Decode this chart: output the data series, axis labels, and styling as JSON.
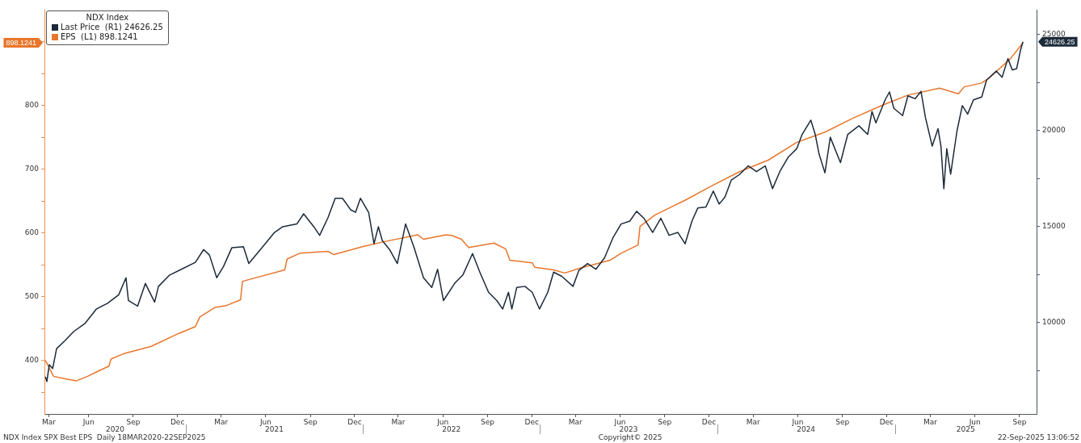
{
  "chart_data": {
    "type": "line",
    "legend_title": "NDX Index",
    "legend": "top left",
    "marker": "none",
    "grid": false,
    "xlim": [
      "2020-03-16",
      "2025-10-20"
    ],
    "xticks": [
      {
        "value": "2020-03-25",
        "label": "Mar"
      },
      {
        "value": "2020-06-15",
        "label": "Jun"
      },
      {
        "value": "2020-09-15",
        "label": "Sep"
      },
      {
        "value": "2020-12-15",
        "label": "Dec"
      },
      {
        "value": "2021-03-15",
        "label": "Mar"
      },
      {
        "value": "2021-06-15",
        "label": "Jun"
      },
      {
        "value": "2021-09-15",
        "label": "Sep"
      },
      {
        "value": "2021-12-15",
        "label": "Dec"
      },
      {
        "value": "2022-03-15",
        "label": "Mar"
      },
      {
        "value": "2022-06-15",
        "label": "Jun"
      },
      {
        "value": "2022-09-15",
        "label": "Sep"
      },
      {
        "value": "2022-12-15",
        "label": "Dec"
      },
      {
        "value": "2023-03-15",
        "label": "Mar"
      },
      {
        "value": "2023-06-15",
        "label": "Jun"
      },
      {
        "value": "2023-09-15",
        "label": "Sep"
      },
      {
        "value": "2023-12-15",
        "label": "Dec"
      },
      {
        "value": "2024-03-15",
        "label": "Mar"
      },
      {
        "value": "2024-06-15",
        "label": "Jun"
      },
      {
        "value": "2024-09-15",
        "label": "Sep"
      },
      {
        "value": "2024-12-15",
        "label": "Dec"
      },
      {
        "value": "2025-03-15",
        "label": "Mar"
      },
      {
        "value": "2025-06-15",
        "label": "Jun"
      },
      {
        "value": "2025-09-15",
        "label": "Sep"
      }
    ],
    "ylim": [
      316,
      950
    ],
    "yticks": [
      {
        "value": 350,
        "label": null
      },
      400,
      {
        "value": 450,
        "label": null
      },
      500,
      {
        "value": 550,
        "label": null
      },
      600,
      {
        "value": 650,
        "label": null
      },
      700,
      {
        "value": 750,
        "label": null
      },
      800,
      {
        "value": 850,
        "label": null
      },
      {
        "value": 900,
        "label": null
      }
    ],
    "y2lim": [
      5230,
      26300
    ],
    "y2ticks": [
      {
        "value": 7500,
        "label": null
      },
      10000,
      {
        "value": 12500,
        "label": null
      },
      15000,
      {
        "value": 17500,
        "label": null
      },
      20000,
      {
        "value": 22500,
        "label": null
      },
      25000
    ],
    "series": [
      {
        "name": "Last Price  (R1) 24626.25",
        "color": "#1c2a3a",
        "axis": "y2",
        "x": [
          "2020-03-18",
          "2020-03-21",
          "2020-03-26",
          "2020-04-02",
          "2020-04-10",
          "2020-04-28",
          "2020-05-15",
          "2020-06-08",
          "2020-07-01",
          "2020-07-24",
          "2020-08-16",
          "2020-08-31",
          "2020-09-05",
          "2020-09-24",
          "2020-10-10",
          "2020-10-29",
          "2020-11-06",
          "2020-11-29",
          "2020-12-23",
          "2021-01-21",
          "2021-02-07",
          "2021-02-19",
          "2021-03-06",
          "2021-03-20",
          "2021-04-06",
          "2021-04-30",
          "2021-05-11",
          "2021-06-04",
          "2021-07-03",
          "2021-07-20",
          "2021-08-18",
          "2021-09-01",
          "2021-09-22",
          "2021-10-04",
          "2021-10-21",
          "2021-11-05",
          "2021-11-20",
          "2021-12-07",
          "2021-12-17",
          "2021-12-27",
          "2022-01-13",
          "2022-01-24",
          "2022-02-02",
          "2022-02-10",
          "2022-02-25",
          "2022-03-13",
          "2022-03-30",
          "2022-04-16",
          "2022-05-06",
          "2022-05-23",
          "2022-06-04",
          "2022-06-16",
          "2022-07-09",
          "2022-07-26",
          "2022-08-15",
          "2022-08-30",
          "2022-09-17",
          "2022-10-04",
          "2022-10-16",
          "2022-10-28",
          "2022-11-04",
          "2022-11-14",
          "2022-12-01",
          "2022-12-16",
          "2022-12-31",
          "2023-01-17",
          "2023-01-29",
          "2023-02-15",
          "2023-03-10",
          "2023-03-22",
          "2023-04-09",
          "2023-04-26",
          "2023-05-14",
          "2023-05-31",
          "2023-06-17",
          "2023-07-05",
          "2023-07-19",
          "2023-08-03",
          "2023-08-21",
          "2023-09-07",
          "2023-09-24",
          "2023-10-12",
          "2023-10-27",
          "2023-11-10",
          "2023-11-22",
          "2023-12-09",
          "2023-12-24",
          "2024-01-05",
          "2024-01-17",
          "2024-01-30",
          "2024-02-16",
          "2024-03-05",
          "2024-03-22",
          "2024-04-09",
          "2024-04-24",
          "2024-05-09",
          "2024-05-26",
          "2024-06-13",
          "2024-06-24",
          "2024-07-12",
          "2024-07-21",
          "2024-07-29",
          "2024-08-10",
          "2024-08-21",
          "2024-09-11",
          "2024-09-26",
          "2024-10-19",
          "2024-11-06",
          "2024-11-15",
          "2024-11-23",
          "2024-12-12",
          "2024-12-21",
          "2024-12-30",
          "2025-01-17",
          "2025-01-28",
          "2025-02-12",
          "2025-02-24",
          "2025-03-05",
          "2025-03-19",
          "2025-03-31",
          "2025-04-06",
          "2025-04-12",
          "2025-04-18",
          "2025-04-26",
          "2025-05-09",
          "2025-05-20",
          "2025-05-31",
          "2025-06-12",
          "2025-06-29",
          "2025-07-09",
          "2025-07-29",
          "2025-08-10",
          "2025-08-22",
          "2025-08-31",
          "2025-09-09",
          "2025-09-17",
          "2025-09-22"
        ],
        "values": [
          7170,
          6920,
          7800,
          7600,
          8630,
          9070,
          9520,
          9960,
          10700,
          11000,
          11440,
          12330,
          11140,
          10850,
          12030,
          11060,
          11880,
          12470,
          12770,
          13130,
          13800,
          13510,
          12330,
          12920,
          13890,
          13950,
          13070,
          13800,
          14690,
          14990,
          15130,
          15660,
          14990,
          14540,
          15450,
          16470,
          16470,
          15870,
          15740,
          16470,
          15730,
          14100,
          14990,
          14270,
          13800,
          13070,
          15130,
          13950,
          12330,
          11820,
          12770,
          11140,
          12030,
          12470,
          13590,
          12620,
          11570,
          11140,
          10700,
          11570,
          10700,
          11820,
          11880,
          11570,
          10700,
          11570,
          12620,
          12400,
          11880,
          12710,
          13070,
          12770,
          13370,
          14400,
          15130,
          15280,
          15790,
          15430,
          14690,
          15430,
          14540,
          14690,
          14100,
          15280,
          15960,
          16020,
          16850,
          16170,
          16530,
          17420,
          17710,
          18160,
          17860,
          18160,
          16970,
          17860,
          18600,
          19060,
          19800,
          20540,
          19800,
          18770,
          17800,
          19650,
          18330,
          19800,
          20250,
          19800,
          20990,
          20400,
          21600,
          22010,
          21160,
          20780,
          21810,
          21660,
          22040,
          20690,
          19190,
          20100,
          19190,
          16970,
          19060,
          17730,
          19970,
          21300,
          20860,
          21600,
          21750,
          22630,
          23100,
          22780,
          23750,
          23160,
          23230,
          24200,
          24626.25
        ]
      },
      {
        "name": "EPS  (L1) 898.1241",
        "color": "#e8762c",
        "x": [
          "2020-03-18",
          "2020-04-04",
          "2020-04-28",
          "2020-05-21",
          "2020-06-13",
          "2020-07-07",
          "2020-07-27",
          "2020-07-31",
          "2020-08-28",
          "2020-10-22",
          "2020-12-17",
          "2021-01-21",
          "2021-01-30",
          "2021-03-02",
          "2021-03-26",
          "2021-04-24",
          "2021-04-28",
          "2021-07-24",
          "2021-07-29",
          "2021-08-24",
          "2021-10-21",
          "2021-11-02",
          "2022-01-03",
          "2022-02-13",
          "2022-04-24",
          "2022-05-06",
          "2022-06-21",
          "2022-07-03",
          "2022-07-23",
          "2022-08-07",
          "2022-09-28",
          "2022-10-22",
          "2022-10-31",
          "2022-12-16",
          "2022-12-21",
          "2023-01-29",
          "2023-02-21",
          "2023-03-22",
          "2023-05-25",
          "2023-06-17",
          "2023-07-22",
          "2023-07-26",
          "2023-08-26",
          "2023-10-29",
          "2023-12-19",
          "2024-02-16",
          "2024-04-15",
          "2024-06-13",
          "2024-08-10",
          "2024-10-07",
          "2024-12-06",
          "2025-01-28",
          "2025-04-03",
          "2025-05-12",
          "2025-05-24",
          "2025-06-29",
          "2025-07-16",
          "2025-08-27",
          "2025-09-22"
        ],
        "values": [
          400,
          375,
          371,
          368,
          375,
          384,
          391,
          402,
          411,
          422,
          442,
          453,
          468,
          483,
          486,
          495,
          524,
          542,
          559,
          568,
          571,
          566,
          579,
          586,
          597,
          590,
          597,
          596,
          590,
          577,
          584,
          575,
          557,
          553,
          546,
          542,
          537,
          544,
          557,
          568,
          581,
          610,
          628,
          652,
          673,
          696,
          714,
          742,
          758,
          780,
          800,
          816,
          827,
          818,
          829,
          835,
          844,
          873,
          898.1241
        ]
      }
    ],
    "annotations": [
      "24626.25",
      "898.1241",
      "2020",
      "2021",
      "2022",
      "2023",
      "2024",
      "2025",
      "NDX Index SPX Best EPS  Daily 18MAR2020-22SEP2025",
      "Copyright© 2025",
      "22-Sep-2025 13:06:52"
    ]
  }
}
